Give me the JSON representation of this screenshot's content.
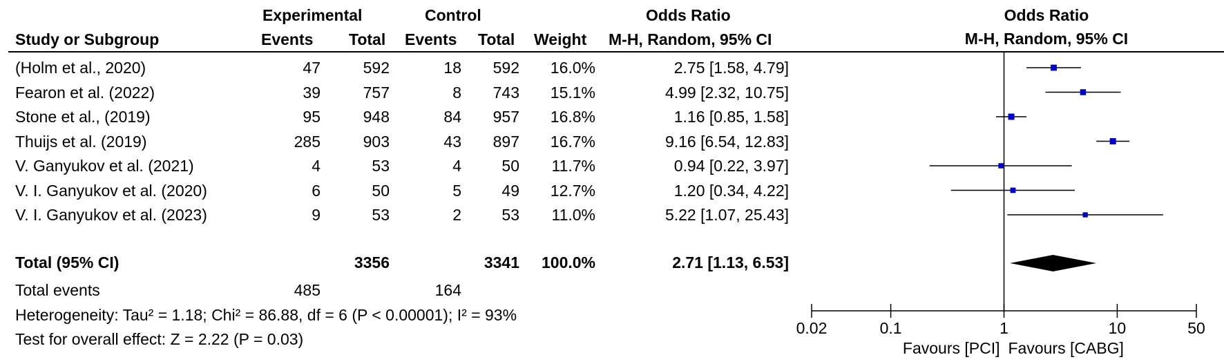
{
  "table": {
    "header_group": {
      "experimental": "Experimental",
      "control": "Control",
      "odds_ratio": "Odds Ratio"
    },
    "columns": {
      "study": "Study or Subgroup",
      "exp_events": "Events",
      "exp_total": "Total",
      "ctl_events": "Events",
      "ctl_total": "Total",
      "weight": "Weight",
      "or_ci": "M-H, Random, 95% CI"
    },
    "rows": [
      {
        "study": "(Holm et al., 2020)",
        "exp_events": "47",
        "exp_total": "592",
        "ctl_events": "18",
        "ctl_total": "592",
        "weight": "16.0%",
        "or_ci": "2.75 [1.58, 4.79]"
      },
      {
        "study": "Fearon et al. (2022)",
        "exp_events": "39",
        "exp_total": "757",
        "ctl_events": "8",
        "ctl_total": "743",
        "weight": "15.1%",
        "or_ci": "4.99 [2.32, 10.75]"
      },
      {
        "study": "Stone et al., (2019)",
        "exp_events": "95",
        "exp_total": "948",
        "ctl_events": "84",
        "ctl_total": "957",
        "weight": "16.8%",
        "or_ci": "1.16 [0.85, 1.58]"
      },
      {
        "study": "Thuijs et al. (2019)",
        "exp_events": "285",
        "exp_total": "903",
        "ctl_events": "43",
        "ctl_total": "897",
        "weight": "16.7%",
        "or_ci": "9.16 [6.54, 12.83]"
      },
      {
        "study": "V. Ganyukov et al. (2021)",
        "exp_events": "4",
        "exp_total": "53",
        "ctl_events": "4",
        "ctl_total": "50",
        "weight": "11.7%",
        "or_ci": "0.94 [0.22, 3.97]"
      },
      {
        "study": "V. I. Ganyukov et al. (2020)",
        "exp_events": "6",
        "exp_total": "50",
        "ctl_events": "5",
        "ctl_total": "49",
        "weight": "12.7%",
        "or_ci": "1.20 [0.34, 4.22]"
      },
      {
        "study": "V. I. Ganyukov et al. (2023)",
        "exp_events": "9",
        "exp_total": "53",
        "ctl_events": "2",
        "ctl_total": "53",
        "weight": "11.0%",
        "or_ci": "5.22 [1.07, 25.43]"
      }
    ],
    "total": {
      "label": "Total (95% CI)",
      "exp_total": "3356",
      "ctl_total": "3341",
      "weight": "100.0%",
      "or_ci": "2.71 [1.13, 6.53]"
    },
    "total_events": {
      "label": "Total events",
      "exp_events": "485",
      "ctl_events": "164"
    },
    "heterogeneity": "Heterogeneity: Tau² = 1.18; Chi² = 86.88, df = 6 (P < 0.00001); I² = 93%",
    "overall_effect": "Test for overall effect: Z = 2.22 (P = 0.03)"
  },
  "chart_data": {
    "type": "forest",
    "header": "Odds Ratio",
    "subheader": "M-H, Random, 95% CI",
    "x_scale": "log",
    "xlim": [
      0.02,
      50
    ],
    "ticks": [
      {
        "value": 0.02,
        "label": "0.02"
      },
      {
        "value": 0.1,
        "label": "0.1"
      },
      {
        "value": 1,
        "label": "1"
      },
      {
        "value": 10,
        "label": "10"
      },
      {
        "value": 50,
        "label": "50"
      }
    ],
    "reference_line": 1,
    "favours_left": "Favours [PCI]",
    "favours_right": "Favours [CABG]",
    "marker_color": "#0000cc",
    "diamond_color": "#000000",
    "studies": [
      {
        "study": "(Holm et al., 2020)",
        "or": 2.75,
        "lower": 1.58,
        "upper": 4.79,
        "weight": 16.0
      },
      {
        "study": "Fearon et al. (2022)",
        "or": 4.99,
        "lower": 2.32,
        "upper": 10.75,
        "weight": 15.1
      },
      {
        "study": "Stone et al., (2019)",
        "or": 1.16,
        "lower": 0.85,
        "upper": 1.58,
        "weight": 16.8
      },
      {
        "study": "Thuijs et al. (2019)",
        "or": 9.16,
        "lower": 6.54,
        "upper": 12.83,
        "weight": 16.7
      },
      {
        "study": "V. Ganyukov et al. (2021)",
        "or": 0.94,
        "lower": 0.22,
        "upper": 3.97,
        "weight": 11.7
      },
      {
        "study": "V. I. Ganyukov et al. (2020)",
        "or": 1.2,
        "lower": 0.34,
        "upper": 4.22,
        "weight": 12.7
      },
      {
        "study": "V. I. Ganyukov et al. (2023)",
        "or": 5.22,
        "lower": 1.07,
        "upper": 25.43,
        "weight": 11.0
      }
    ],
    "pooled": {
      "or": 2.71,
      "lower": 1.13,
      "upper": 6.53
    }
  }
}
